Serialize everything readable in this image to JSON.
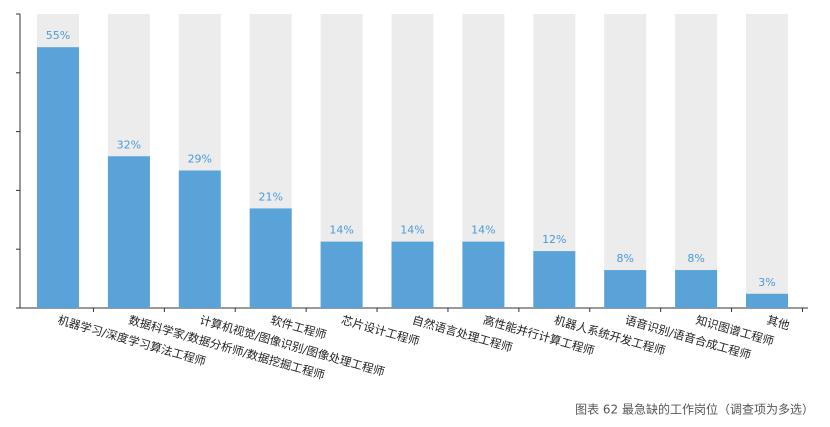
{
  "chart_data": {
    "type": "bar",
    "caption": "图表 62  最急缺的工作岗位（调查项为多选）",
    "categories": [
      "机器学习/深度学习算法工程师",
      "数据科学家/数据分析师/数据挖掘工程师",
      "计算机视觉/图像识别/图像处理工程师",
      "软件工程师",
      "芯片设计工程师",
      "自然语言处理工程师",
      "高性能并行计算工程师",
      "机器人系统开发工程师",
      "语音识别/语音合成工程师",
      "知识图谱工程师",
      "其他"
    ],
    "values": [
      55,
      32,
      29,
      21,
      14,
      14,
      14,
      12,
      8,
      8,
      3
    ],
    "value_labels": [
      "55%",
      "32%",
      "29%",
      "21%",
      "14%",
      "14%",
      "14%",
      "12%",
      "8%",
      "8%",
      "3%"
    ],
    "color": "#5aa3d9",
    "background_color": "#ececec",
    "ylim": [
      0,
      62
    ],
    "yticks": [
      0,
      12.4,
      24.8,
      37.2,
      49.6,
      62
    ]
  }
}
